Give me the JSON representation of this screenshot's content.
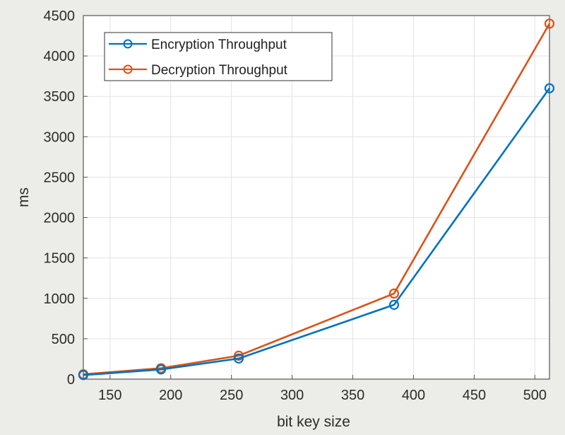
{
  "chart_data": {
    "type": "line",
    "xlabel": "bit key size",
    "ylabel": "ms",
    "xlim": [
      128,
      512
    ],
    "ylim": [
      0,
      4500
    ],
    "xticks": [
      150,
      200,
      250,
      300,
      350,
      400,
      450,
      500
    ],
    "yticks": [
      0,
      500,
      1000,
      1500,
      2000,
      2500,
      3000,
      3500,
      4000,
      4500
    ],
    "grid": true,
    "legend_position": "top-left",
    "x": [
      128,
      192,
      256,
      384,
      512
    ],
    "series": [
      {
        "name": "Encryption Throughput",
        "color": "#0072bd",
        "values": [
          50,
          120,
          255,
          920,
          3600
        ]
      },
      {
        "name": "Decryption Throughput",
        "color": "#d95319",
        "values": [
          60,
          135,
          290,
          1060,
          4400
        ]
      }
    ]
  }
}
